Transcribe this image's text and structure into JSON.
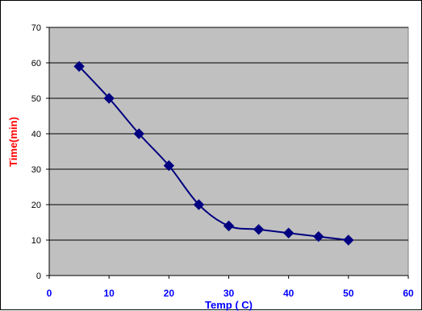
{
  "colors": {
    "plot_bg": "#c0c0c0",
    "gridline": "#000000",
    "series": "#000080",
    "x_axis_text": "#0000ff",
    "y_axis_title": "#ff0000"
  },
  "chart_data": {
    "type": "line",
    "title": "",
    "xlabel": "Temp ( C)",
    "ylabel": "Time(min)",
    "xlim": [
      0,
      60
    ],
    "ylim": [
      0,
      70
    ],
    "x_ticks": [
      "0",
      "10",
      "20",
      "30",
      "40",
      "50",
      "60"
    ],
    "y_ticks": [
      "0",
      "10",
      "20",
      "30",
      "40",
      "50",
      "60",
      "70"
    ],
    "grid": "horizontal",
    "legend": "none",
    "marker": "diamond",
    "smoothed": true,
    "series": [
      {
        "x": [
          5,
          10,
          15,
          20,
          25,
          30,
          35,
          40,
          45,
          50
        ],
        "y": [
          59,
          50,
          40,
          31,
          20,
          14,
          13,
          12,
          11,
          10
        ]
      }
    ]
  }
}
